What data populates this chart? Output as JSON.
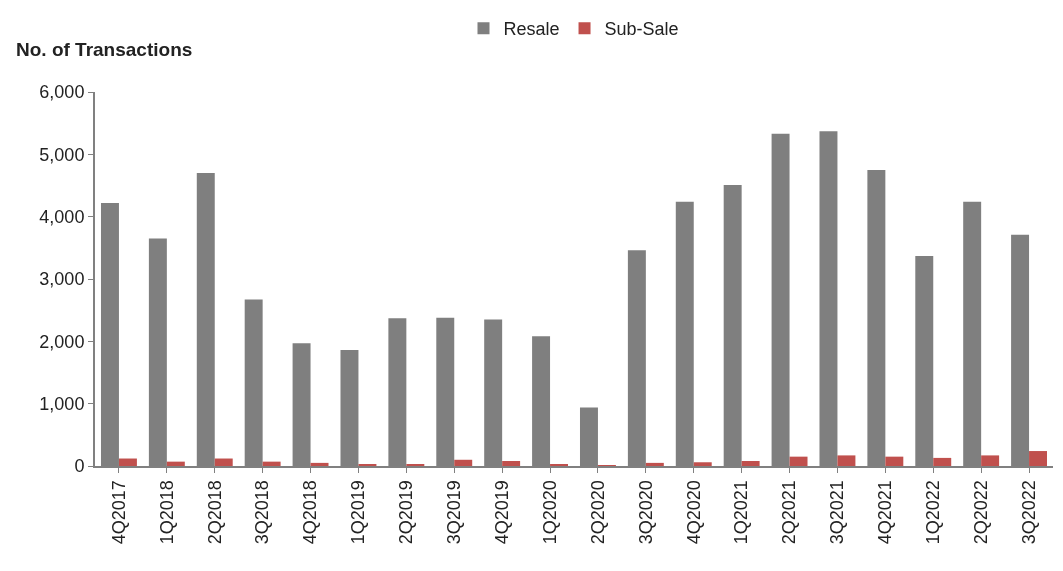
{
  "chart_data": {
    "type": "bar",
    "ylabel": "No. of Transactions",
    "categories": [
      "4Q2017",
      "1Q2018",
      "2Q2018",
      "3Q2018",
      "4Q2018",
      "1Q2019",
      "2Q2019",
      "3Q2019",
      "4Q2019",
      "1Q2020",
      "2Q2020",
      "3Q2020",
      "4Q2020",
      "1Q2021",
      "2Q2021",
      "3Q2021",
      "4Q2021",
      "1Q2022",
      "2Q2022",
      "3Q2022"
    ],
    "series": [
      {
        "name": "Resale",
        "color": "#7f7f7f",
        "values": [
          4220,
          3650,
          4700,
          2670,
          1970,
          1860,
          2370,
          2380,
          2350,
          2080,
          940,
          3460,
          4240,
          4510,
          5330,
          5370,
          4750,
          3370,
          4240,
          3710
        ]
      },
      {
        "name": "Sub-Sale",
        "color": "#c0504d",
        "values": [
          120,
          70,
          120,
          70,
          50,
          30,
          30,
          100,
          80,
          30,
          10,
          50,
          60,
          80,
          150,
          170,
          150,
          130,
          170,
          240
        ]
      }
    ],
    "ylim": [
      0,
      6000
    ],
    "yticks": [
      {
        "value": 0,
        "label": "0"
      },
      {
        "value": 1000,
        "label": "1,000"
      },
      {
        "value": 2000,
        "label": "2,000"
      },
      {
        "value": 3000,
        "label": "3,000"
      },
      {
        "value": 4000,
        "label": "4,000"
      },
      {
        "value": 5000,
        "label": "5,000"
      },
      {
        "value": 6000,
        "label": "6,000"
      }
    ],
    "legend": "top"
  }
}
